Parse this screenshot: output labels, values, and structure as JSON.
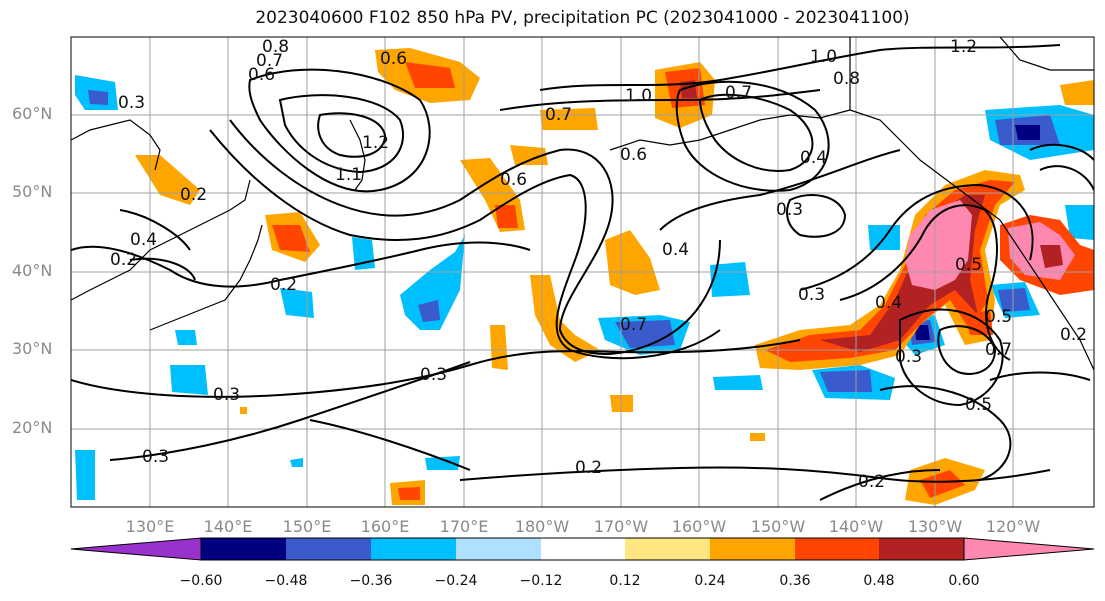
{
  "title": "2023040600 F102 850 hPa PV, precipitation PC (2023041000 - 2023041100)",
  "lat_labels": [
    "60°N",
    "50°N",
    "40°N",
    "30°N",
    "20°N"
  ],
  "lon_labels": [
    "130°E",
    "140°E",
    "150°E",
    "160°E",
    "170°E",
    "180°W",
    "170°W",
    "160°W",
    "150°W",
    "140°W",
    "130°W",
    "120°W"
  ],
  "colorbar": {
    "tick_labels": [
      "−0.60",
      "−0.48",
      "−0.36",
      "−0.24",
      "−0.12",
      "0.12",
      "0.24",
      "0.36",
      "0.48",
      "0.60"
    ],
    "colors": [
      "#9932CC",
      "#000080",
      "#3a5bcc",
      "#00bfff",
      "#b0e0ff",
      "#ffffff",
      "#ffe680",
      "#ffa500",
      "#ff4500",
      "#b22222",
      "#ff88b0"
    ]
  },
  "contour_labels": [
    "0.8",
    "0.7",
    "0.6",
    "0.3",
    "1.2",
    "1.1",
    "0.6",
    "1.0",
    "0.7",
    "0.8",
    "1.0",
    "1.2",
    "0.7",
    "0.6",
    "0.4",
    "0.3",
    "0.2",
    "0.2",
    "0.4",
    "0.2",
    "0.3",
    "0.5",
    "0.4",
    "0.3",
    "0.3",
    "0.3",
    "0.2",
    "0.2",
    "0.5",
    "0.7",
    "0.3",
    "0.4",
    "0.5",
    "0.6",
    "0.7",
    "0.2"
  ]
}
